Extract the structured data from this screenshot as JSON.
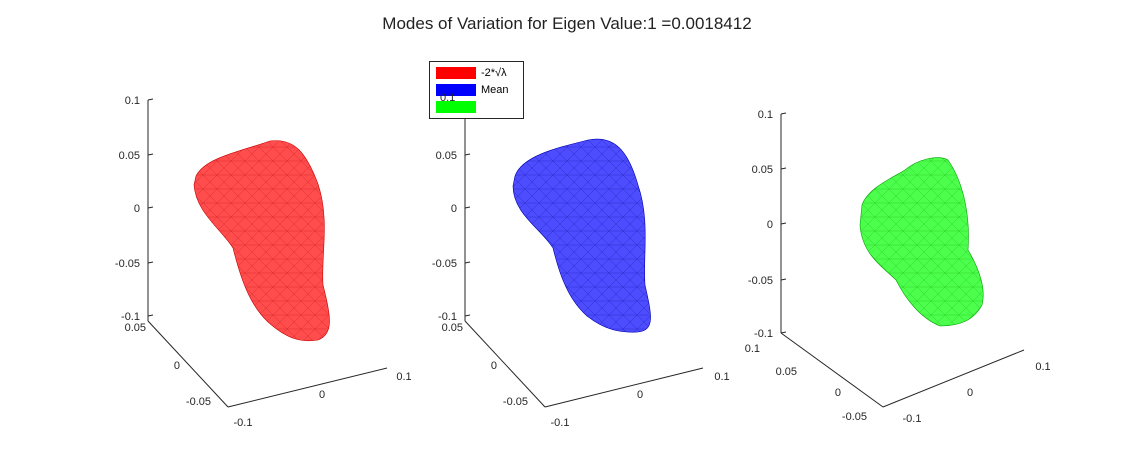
{
  "figure": {
    "title": "Modes of Variation for Eigen Value:1 =0.0018412"
  },
  "legend": {
    "entries": [
      {
        "label": "-2*√λ",
        "color": "#ff0000"
      },
      {
        "label": "Mean",
        "color": "#0000ff"
      },
      {
        "label": "",
        "color": "#00ff00"
      }
    ],
    "overlap_tick": "0.1"
  },
  "chart_data": [
    {
      "type": "scatter",
      "subtype": "3d-surface-mesh",
      "series": [
        {
          "name": "-2*√λ",
          "color": "#ff0000"
        }
      ],
      "z_ticks": [
        "0.1",
        "0.05",
        "0",
        "-0.05",
        "-0.1"
      ],
      "y_ticks": [
        "0.05",
        "0",
        "-0.05"
      ],
      "x_ticks": [
        "-0.1",
        "0",
        "0.1"
      ],
      "zlim": [
        -0.1,
        0.1
      ]
    },
    {
      "type": "scatter",
      "subtype": "3d-surface-mesh",
      "series": [
        {
          "name": "Mean",
          "color": "#0000ff"
        }
      ],
      "z_ticks": [
        "0.1",
        "0.05",
        "0",
        "-0.05",
        "-0.1"
      ],
      "y_ticks": [
        "0.05",
        "0",
        "-0.05"
      ],
      "x_ticks": [
        "-0.1",
        "0",
        "0.1"
      ],
      "zlim": [
        -0.1,
        0.1
      ]
    },
    {
      "type": "scatter",
      "subtype": "3d-surface-mesh",
      "series": [
        {
          "color": "#00ff00"
        }
      ],
      "z_ticks": [
        "0.1",
        "0.05",
        "0",
        "-0.05",
        "-0.1"
      ],
      "y_ticks": [
        "0.1",
        "0.05",
        "0",
        "-0.05"
      ],
      "x_ticks": [
        "-0.1",
        "0",
        "0.1"
      ],
      "zlim": [
        -0.1,
        0.1
      ]
    }
  ]
}
